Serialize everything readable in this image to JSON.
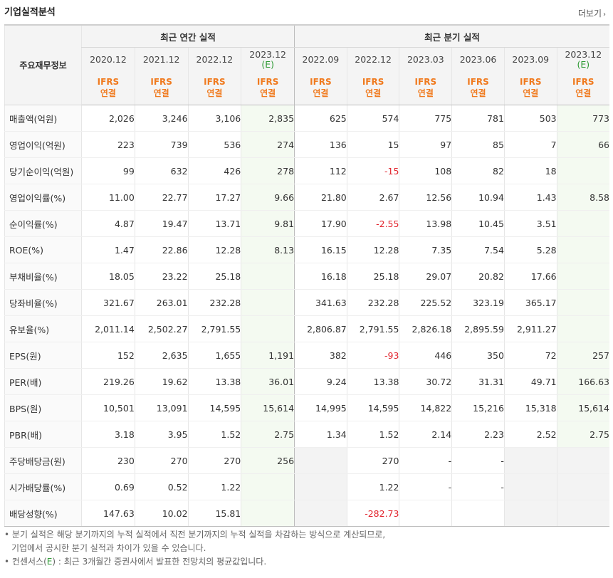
{
  "title": "기업실적분석",
  "more_label": "더보기",
  "header": {
    "row_label": "주요재무정보",
    "annual_group": "최근 연간 실적",
    "quarter_group": "최근 분기 실적",
    "periods": [
      "2020.12",
      "2021.12",
      "2022.12",
      "2023.12",
      "2022.09",
      "2022.12",
      "2023.03",
      "2023.06",
      "2023.09",
      "2023.12"
    ],
    "estimate_mark": "(E)",
    "report_line1": "IFRS",
    "report_line2": "연결"
  },
  "rows": [
    {
      "label": "매출액(억원)",
      "values": [
        "2,026",
        "3,246",
        "3,106",
        "2,835",
        "625",
        "574",
        "775",
        "781",
        "503",
        "773"
      ]
    },
    {
      "label": "영업이익(억원)",
      "values": [
        "223",
        "739",
        "536",
        "274",
        "136",
        "15",
        "97",
        "85",
        "7",
        "66"
      ]
    },
    {
      "label": "당기순이익(억원)",
      "values": [
        "99",
        "632",
        "426",
        "278",
        "112",
        "-15",
        "108",
        "82",
        "18",
        ""
      ]
    },
    {
      "label": "영업이익률(%)",
      "values": [
        "11.00",
        "22.77",
        "17.27",
        "9.66",
        "21.80",
        "2.67",
        "12.56",
        "10.94",
        "1.43",
        "8.58"
      ]
    },
    {
      "label": "순이익률(%)",
      "values": [
        "4.87",
        "19.47",
        "13.71",
        "9.81",
        "17.90",
        "-2.55",
        "13.98",
        "10.45",
        "3.51",
        ""
      ]
    },
    {
      "label": "ROE(%)",
      "values": [
        "1.47",
        "22.86",
        "12.28",
        "8.13",
        "16.15",
        "12.28",
        "7.35",
        "7.54",
        "5.28",
        ""
      ]
    },
    {
      "label": "부채비율(%)",
      "values": [
        "18.05",
        "23.22",
        "25.18",
        "",
        "16.18",
        "25.18",
        "29.07",
        "20.82",
        "17.66",
        ""
      ]
    },
    {
      "label": "당좌비율(%)",
      "values": [
        "321.67",
        "263.01",
        "232.28",
        "",
        "341.63",
        "232.28",
        "225.52",
        "323.19",
        "365.17",
        ""
      ]
    },
    {
      "label": "유보율(%)",
      "values": [
        "2,011.14",
        "2,502.27",
        "2,791.55",
        "",
        "2,806.87",
        "2,791.55",
        "2,826.18",
        "2,895.59",
        "2,911.27",
        ""
      ]
    },
    {
      "label": "EPS(원)",
      "values": [
        "152",
        "2,635",
        "1,655",
        "1,191",
        "382",
        "-93",
        "446",
        "350",
        "72",
        "257"
      ]
    },
    {
      "label": "PER(배)",
      "values": [
        "219.26",
        "19.62",
        "13.38",
        "36.01",
        "9.24",
        "13.38",
        "30.72",
        "31.31",
        "49.71",
        "166.63"
      ]
    },
    {
      "label": "BPS(원)",
      "values": [
        "10,501",
        "13,091",
        "14,595",
        "15,614",
        "14,995",
        "14,595",
        "14,822",
        "15,216",
        "15,318",
        "15,614"
      ]
    },
    {
      "label": "PBR(배)",
      "values": [
        "3.18",
        "3.95",
        "1.52",
        "2.75",
        "1.34",
        "1.52",
        "2.14",
        "2.23",
        "2.52",
        "2.75"
      ]
    },
    {
      "label": "주당배당금(원)",
      "values": [
        "230",
        "270",
        "270",
        "256",
        "",
        "270",
        "-",
        "-",
        "",
        ""
      ]
    },
    {
      "label": "시가배당률(%)",
      "values": [
        "0.69",
        "0.52",
        "1.22",
        "",
        "",
        "1.22",
        "-",
        "-",
        "",
        ""
      ]
    },
    {
      "label": "배당성향(%)",
      "values": [
        "147.63",
        "10.02",
        "15.81",
        "",
        "",
        "-282.73",
        "",
        "",
        "",
        ""
      ]
    }
  ],
  "notes": {
    "line1": "분기 실적은 해당 분기까지의 누적 실적에서 직전 분기까지의 누적 실적을 차감하는 방식으로 계산되므로,",
    "line2": "기업에서 공시한 분기 실적과 차이가 있을 수 있습니다.",
    "line3_prefix": "컨센서스(",
    "line3_e": "E",
    "line3_suffix": ") : 최근 3개월간 증권사에서 발표한 전망치의 평균값입니다."
  },
  "colors": {
    "estimate_text": "#2e9a34",
    "report_type": "#f07a1e",
    "negative": "#e2252e"
  }
}
